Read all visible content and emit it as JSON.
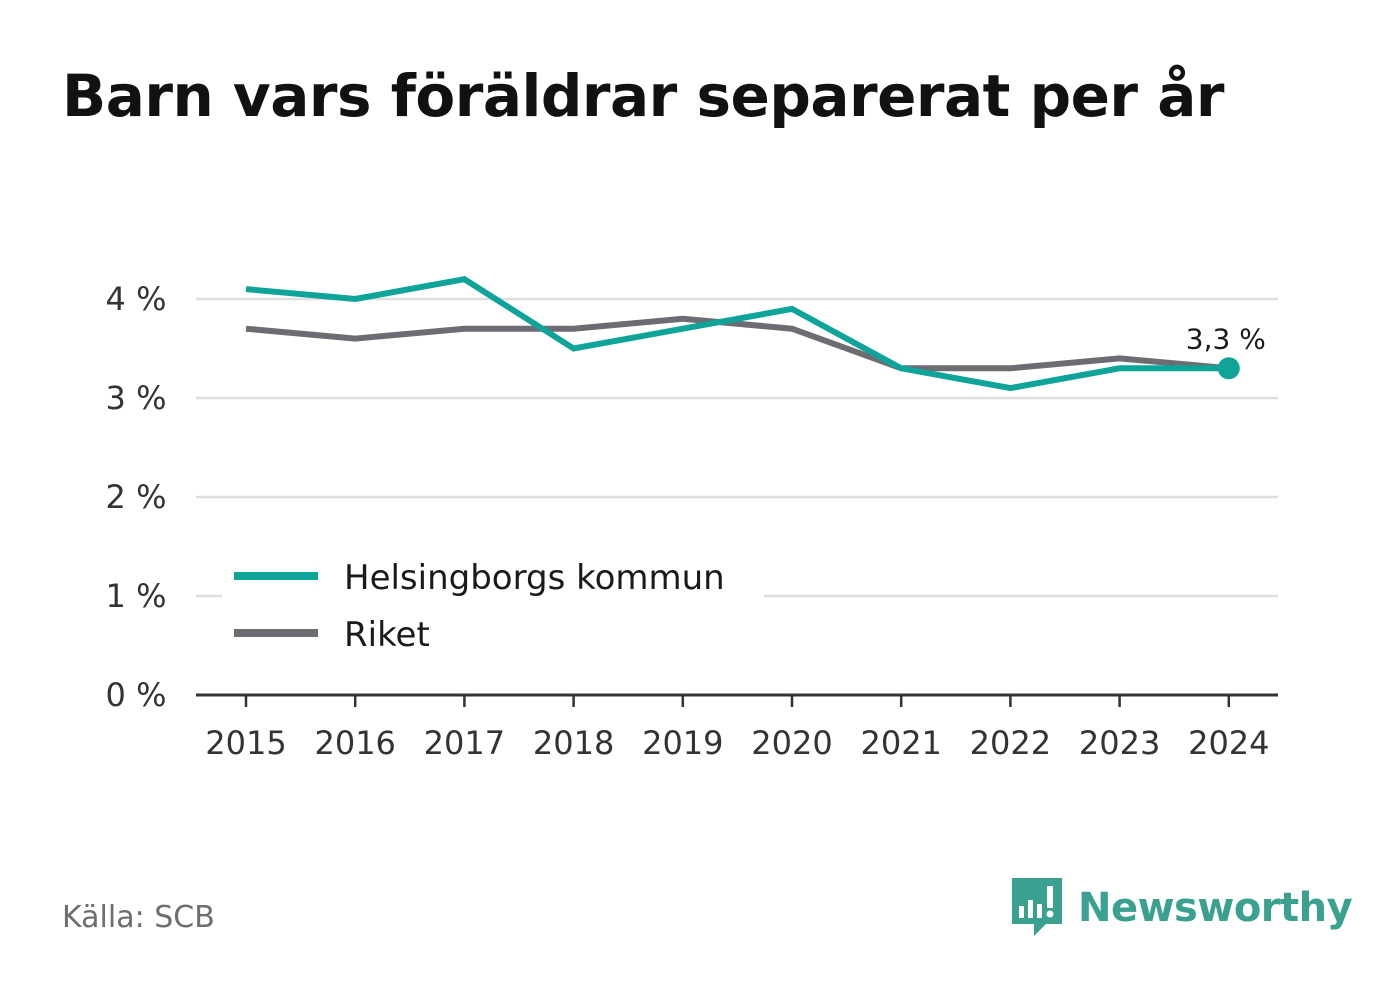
{
  "chart_data": {
    "type": "line",
    "title": "Barn vars föräldrar separerat per år",
    "xlabel": "",
    "ylabel": "",
    "x": [
      "2015",
      "2016",
      "2017",
      "2018",
      "2019",
      "2020",
      "2021",
      "2022",
      "2023",
      "2024"
    ],
    "series": [
      {
        "name": "Helsingborgs kommun",
        "color": "#0ea49a",
        "values": [
          4.1,
          4.0,
          4.2,
          3.5,
          3.7,
          3.9,
          3.3,
          3.1,
          3.3,
          3.3
        ]
      },
      {
        "name": "Riket",
        "color": "#6e6c73",
        "values": [
          3.7,
          3.6,
          3.7,
          3.7,
          3.8,
          3.7,
          3.3,
          3.3,
          3.4,
          3.3
        ]
      }
    ],
    "ylim": [
      0,
      4.4
    ],
    "yticks": [
      0,
      1,
      2,
      3,
      4
    ],
    "ytick_labels": [
      "0 %",
      "1 %",
      "2 %",
      "3 %",
      "4 %"
    ],
    "grid": true,
    "legend_position": "bottom-left",
    "end_label": "3,3 %"
  },
  "footer": {
    "source": "Källa: SCB",
    "brand": "Newsworthy",
    "brand_color": "#3aa090"
  }
}
